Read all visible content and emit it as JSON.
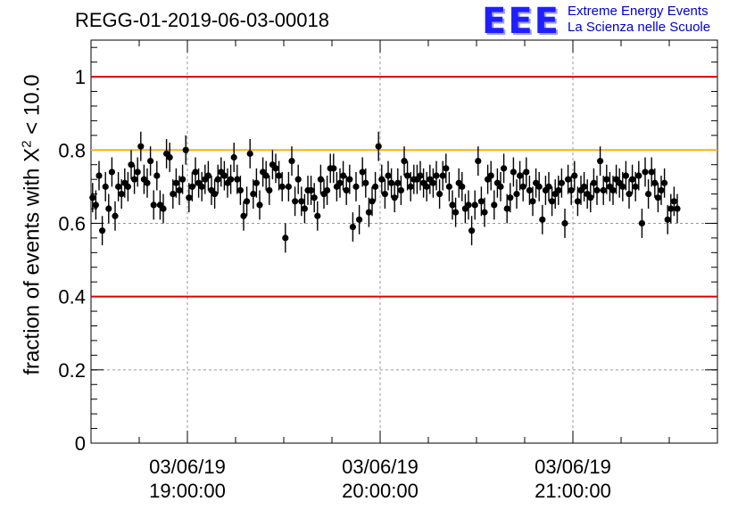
{
  "header": {
    "title": "REGG-01-2019-06-03-00018",
    "logo_letters": "EEE",
    "logo_line1": "Extreme Energy Events",
    "logo_line2": "La Scienza nelle Scuole"
  },
  "chart_data": {
    "type": "scatter",
    "title": "REGG-01-2019-06-03-00018",
    "ylabel_text": "fraction of events with",
    "ylabel_symbol": "X",
    "ylabel_power": "2",
    "ylabel_threshold": " < 10.0",
    "ylim": [
      0,
      1.1
    ],
    "xlim": [
      "2019-06-03 18:30:00",
      "2019-06-03 21:45:00"
    ],
    "yticks": [
      0,
      0.2,
      0.4,
      0.6,
      0.8,
      1
    ],
    "ytick_labels": [
      "0",
      "0.2",
      "0.4",
      "0.6",
      "0.8",
      "1"
    ],
    "xticks": [
      {
        "time": "2019-06-03 19:00:00",
        "date_label": "03/06/19",
        "time_label": "19:00:00"
      },
      {
        "time": "2019-06-03 20:00:00",
        "date_label": "03/06/19",
        "time_label": "20:00:00"
      },
      {
        "time": "2019-06-03 21:00:00",
        "date_label": "03/06/19",
        "time_label": "21:00:00"
      }
    ],
    "grid": true,
    "reference_lines": [
      {
        "y": 1.0,
        "color": "#e00000"
      },
      {
        "y": 0.8,
        "color": "#ffb000"
      },
      {
        "y": 0.4,
        "color": "#e00000"
      }
    ],
    "series": [
      {
        "color": "#000000",
        "error": 0.04,
        "start_time": "2019-06-03 18:30:00",
        "interval_minutes": 1,
        "y": [
          0.67,
          0.65,
          0.73,
          0.58,
          0.7,
          0.64,
          0.74,
          0.62,
          0.7,
          0.68,
          0.71,
          0.7,
          0.76,
          0.72,
          0.74,
          0.81,
          0.72,
          0.71,
          0.77,
          0.65,
          0.73,
          0.65,
          0.64,
          0.79,
          0.78,
          0.68,
          0.71,
          0.69,
          0.72,
          0.8,
          0.67,
          0.7,
          0.74,
          0.71,
          0.7,
          0.72,
          0.73,
          0.69,
          0.68,
          0.72,
          0.74,
          0.73,
          0.71,
          0.72,
          0.78,
          0.72,
          0.69,
          0.62,
          0.66,
          0.79,
          0.68,
          0.71,
          0.65,
          0.74,
          0.73,
          0.69,
          0.76,
          0.75,
          0.73,
          0.7,
          0.56,
          0.7,
          0.77,
          0.66,
          0.72,
          0.66,
          0.64,
          0.69,
          0.69,
          0.67,
          0.62,
          0.72,
          0.68,
          0.69,
          0.75,
          0.75,
          0.7,
          0.71,
          0.73,
          0.69,
          0.72,
          0.59,
          0.7,
          0.61,
          0.74,
          0.71,
          0.63,
          0.66,
          0.7,
          0.81,
          0.72,
          0.68,
          0.73,
          0.71,
          0.67,
          0.71,
          0.69,
          0.77,
          0.73,
          0.7,
          0.72,
          0.72,
          0.73,
          0.71,
          0.7,
          0.72,
          0.71,
          0.73,
          0.68,
          0.73,
          0.75,
          0.7,
          0.65,
          0.63,
          0.71,
          0.7,
          0.64,
          0.65,
          0.58,
          0.65,
          0.77,
          0.66,
          0.63,
          0.72,
          0.73,
          0.65,
          0.71,
          0.7,
          0.75,
          0.64,
          0.67,
          0.74,
          0.68,
          0.73,
          0.7,
          0.74,
          0.69,
          0.66,
          0.71,
          0.7,
          0.61,
          0.69,
          0.7,
          0.66,
          0.68,
          0.69,
          0.71,
          0.6,
          0.72,
          0.69,
          0.73,
          0.66,
          0.69,
          0.7,
          0.68,
          0.67,
          0.71,
          0.69,
          0.77,
          0.69,
          0.72,
          0.7,
          0.69,
          0.72,
          0.71,
          0.7,
          0.73,
          0.68,
          0.72,
          0.7,
          0.73,
          0.6,
          0.74,
          0.68,
          0.74,
          0.71,
          0.67,
          0.69,
          0.71,
          0.61,
          0.64,
          0.66,
          0.64
        ]
      }
    ]
  }
}
